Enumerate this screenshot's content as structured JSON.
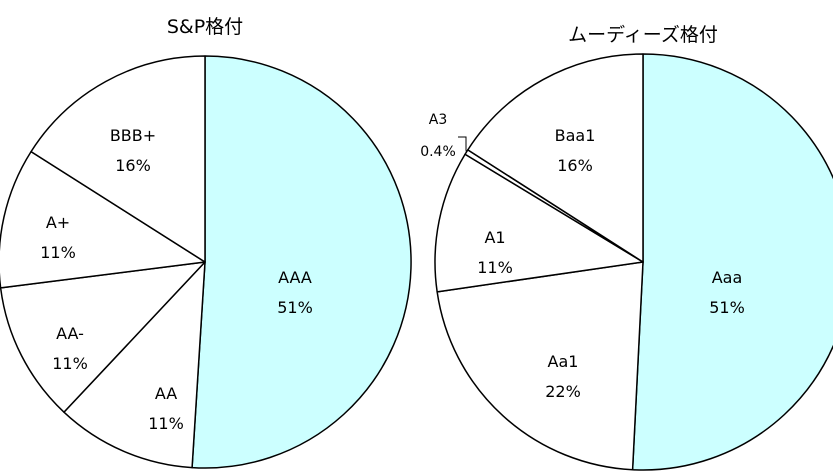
{
  "chart_data": [
    {
      "type": "pie",
      "title": "S&P格付",
      "slices": [
        {
          "label": "AAA",
          "pct_label": "51%",
          "value": 51,
          "color": "#ccffff"
        },
        {
          "label": "AA",
          "pct_label": "11%",
          "value": 11,
          "color": "#ffffff"
        },
        {
          "label": "AA-",
          "pct_label": "11%",
          "value": 11,
          "color": "#ffffff"
        },
        {
          "label": "A+",
          "pct_label": "11%",
          "value": 11,
          "color": "#ffffff"
        },
        {
          "label": "BBB+",
          "pct_label": "16%",
          "value": 16,
          "color": "#ffffff"
        }
      ]
    },
    {
      "type": "pie",
      "title": "ムーディーズ格付",
      "slices": [
        {
          "label": "Aaa",
          "pct_label": "51%",
          "value": 51,
          "color": "#ccffff"
        },
        {
          "label": "Aa1",
          "pct_label": "22%",
          "value": 22,
          "color": "#ffffff"
        },
        {
          "label": "A1",
          "pct_label": "11%",
          "value": 11,
          "color": "#ffffff"
        },
        {
          "label": "A3",
          "pct_label": "0.4%",
          "value": 0.4,
          "color": "#ffffff"
        },
        {
          "label": "Baa1",
          "pct_label": "16%",
          "value": 16,
          "color": "#ffffff"
        }
      ]
    }
  ]
}
